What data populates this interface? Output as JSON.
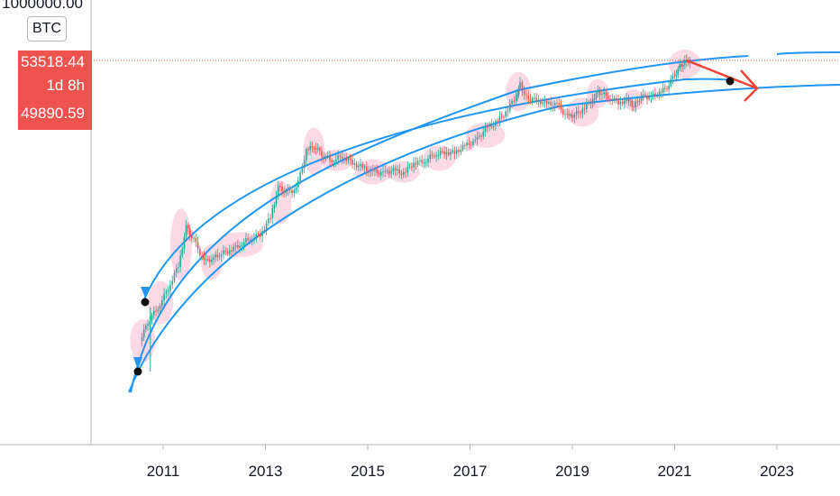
{
  "chart_data": {
    "type": "candlestick",
    "instrument": "BTC",
    "y_scale": "log",
    "y_top_label": "1000000.00",
    "x_ticks": [
      "2011",
      "2013",
      "2015",
      "2017",
      "2019",
      "2021",
      "2023"
    ],
    "price_labels": {
      "last_price": "53518.44",
      "countdown": "1d 8h",
      "prev_price": "49890.59"
    },
    "price_line_value": 53518.44,
    "series": [
      {
        "x": [
          2010.55,
          2010.7,
          2010.9,
          2011.1,
          2011.3,
          2011.45,
          2011.6,
          2011.8,
          2011.95,
          2012.1,
          2012.3,
          2012.5,
          2012.7,
          2012.9,
          2013.1,
          2013.25,
          2013.4,
          2013.6,
          2013.8,
          2013.95,
          2014.1,
          2014.3,
          2014.5,
          2014.7,
          2014.9,
          2015.1,
          2015.3,
          2015.5,
          2015.7,
          2015.9,
          2016.1,
          2016.3,
          2016.5,
          2016.7,
          2016.9,
          2017.1,
          2017.3,
          2017.5,
          2017.7,
          2017.9,
          2017.98,
          2018.1,
          2018.3,
          2018.5,
          2018.7,
          2018.9,
          2019.0,
          2019.2,
          2019.4,
          2019.5,
          2019.7,
          2019.9,
          2020.1,
          2020.2,
          2020.35,
          2020.5,
          2020.7,
          2020.85,
          2021.0,
          2021.1,
          2021.2,
          2021.3
        ],
        "close": [
          0.08,
          0.2,
          0.4,
          1,
          3,
          18,
          10,
          3.5,
          4,
          5,
          6,
          8,
          11,
          13,
          30,
          120,
          100,
          110,
          700,
          900,
          600,
          450,
          550,
          400,
          320,
          260,
          240,
          280,
          240,
          400,
          430,
          600,
          660,
          650,
          900,
          1100,
          2000,
          2700,
          4500,
          10000,
          17000,
          9000,
          8000,
          6800,
          6500,
          3600,
          3800,
          5000,
          8500,
          12000,
          9500,
          7200,
          8000,
          6000,
          9500,
          9400,
          11000,
          15000,
          28000,
          40000,
          50000,
          53518.44
        ]
      }
    ],
    "channel_lines": [
      {
        "name": "",
        "color": "#2196f3"
      },
      {
        "name": "",
        "color": "#2196f3"
      },
      {
        "name": "",
        "color": "#2196f3"
      }
    ],
    "projection_arrow_color": "#f44336",
    "highlight_color": "#f8bbd0",
    "up_color": "#26a69a",
    "down_color": "#ef5350",
    "grid": false
  }
}
